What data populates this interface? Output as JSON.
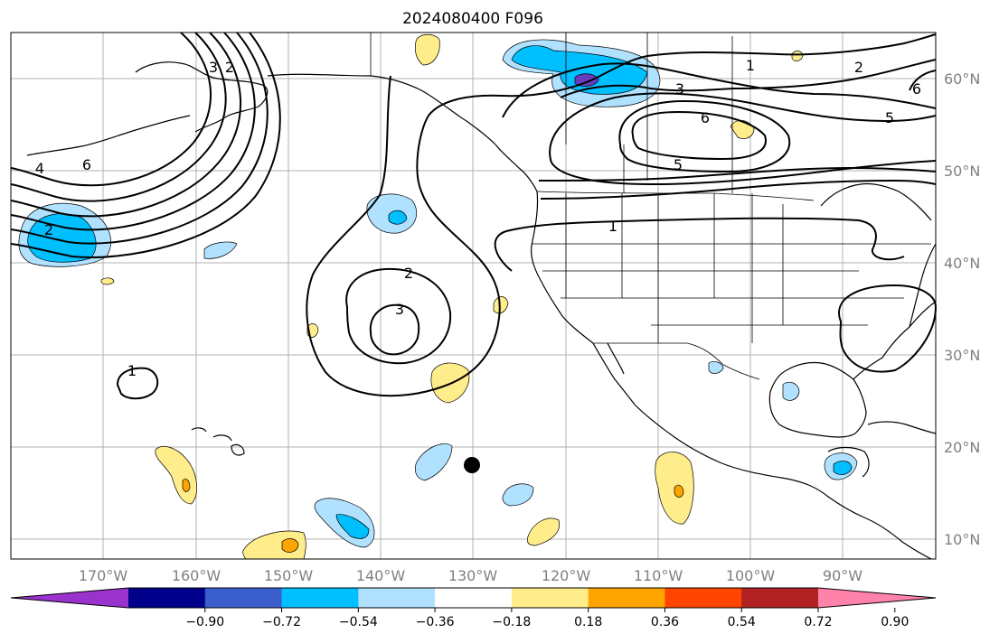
{
  "title": "2024080400 F096",
  "longitude_labels": [
    "170°W",
    "160°W",
    "150°W",
    "140°W",
    "130°W",
    "120°W",
    "110°W",
    "100°W",
    "90°W"
  ],
  "latitude_labels": [
    "60°N",
    "50°N",
    "40°N",
    "30°N",
    "20°N",
    "10°N"
  ],
  "contour_labels": [
    "1",
    "2",
    "3",
    "4",
    "5",
    "6"
  ],
  "colorbar": {
    "ticks": [
      "−0.90",
      "−0.72",
      "−0.54",
      "−0.36",
      "−0.18",
      "0.18",
      "0.36",
      "0.54",
      "0.72",
      "0.90"
    ],
    "colors": [
      "#9a32cd",
      "#00008b",
      "#3a5fcd",
      "#00bfff",
      "#b0e2ff",
      "#ffffff",
      "#ffec8b",
      "#ffa500",
      "#ff4500",
      "#b22222",
      "#ff82ab"
    ]
  },
  "fill_colors": {
    "light_blue": "#b0e2ff",
    "blue": "#00bfff",
    "dark_blue": "#3a5fcd",
    "purple": "#6a3cbd",
    "yellow": "#ffec8b",
    "orange": "#ffa500"
  },
  "marker": "black-dot"
}
